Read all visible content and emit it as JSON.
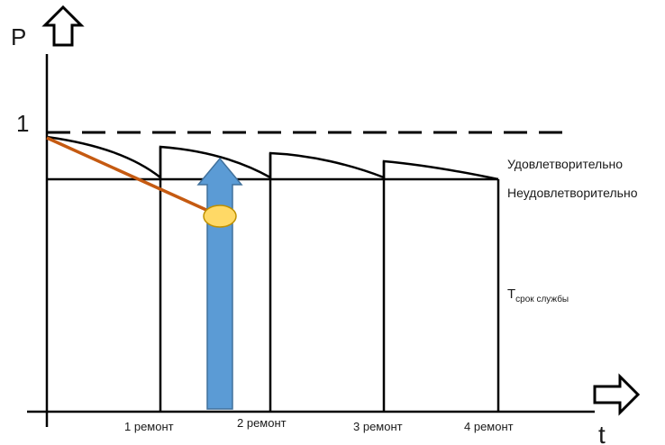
{
  "axes": {
    "y_label": "P",
    "x_label": "t",
    "y_tick_one": "1"
  },
  "levels": {
    "satisfactory": "Удовлетворительно",
    "unsatisfactory": "Неудовлетворительно"
  },
  "service_life": {
    "main": "T",
    "subscript": "срок службы"
  },
  "repairs": [
    "1 ремонт",
    "2 ремонт",
    "3 ремонт",
    "4 ремонт"
  ],
  "colors": {
    "line": "#000000",
    "trend": "#c55a11",
    "arrow": "#5b9bd5",
    "arrow_stroke": "#41719c",
    "marker": "#ffd966",
    "marker_stroke": "#bf9000"
  }
}
